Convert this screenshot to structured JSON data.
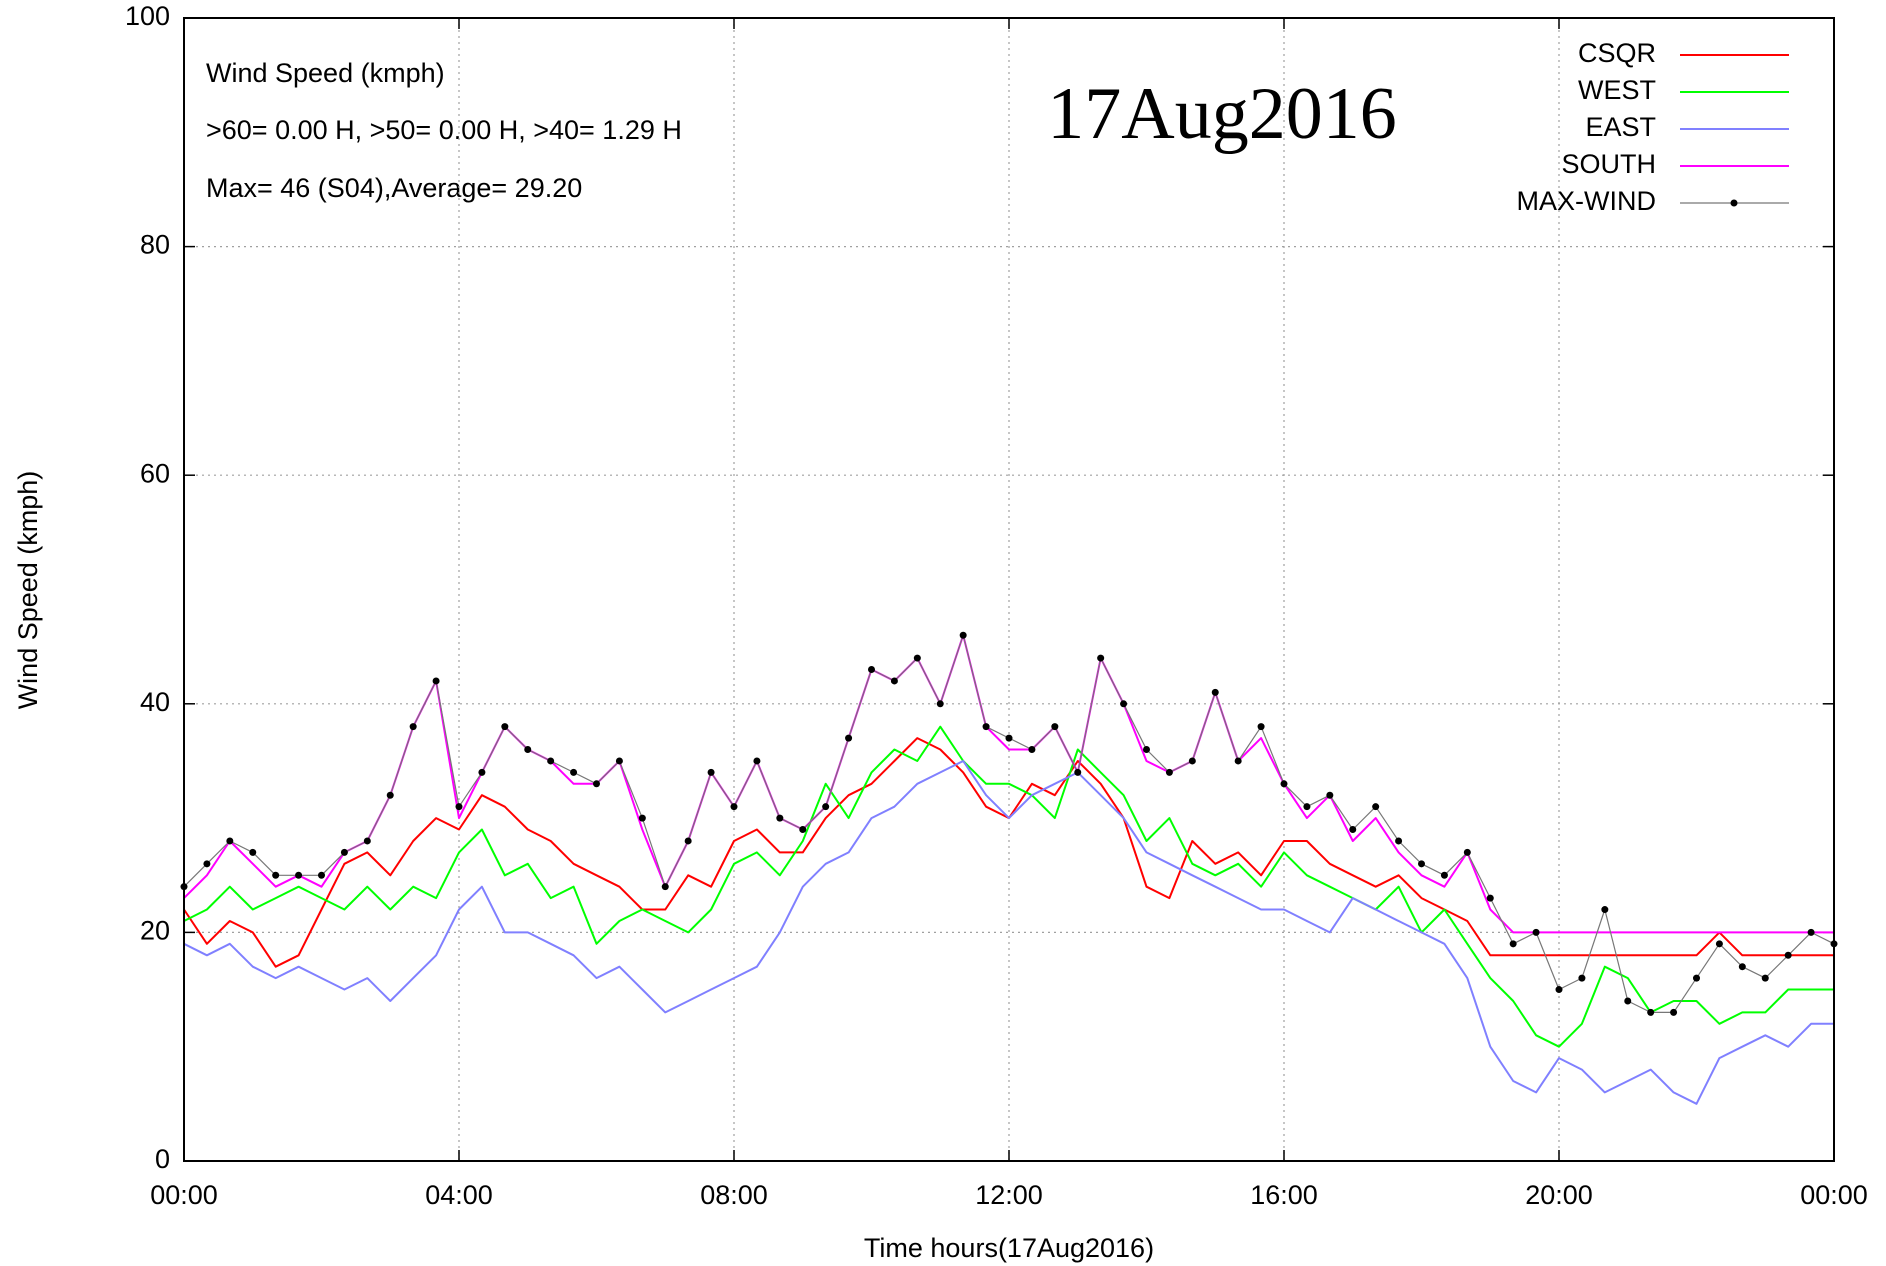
{
  "chart_data": {
    "type": "line",
    "xlabel": "Time hours(17Aug2016)",
    "ylabel": "Wind Speed (kmph)",
    "annotations": [
      "Wind Speed (kmph)",
      ">60=  0.00 H, >50=  0.00 H, >40=  1.29 H",
      "Max= 46 (S04),Average= 29.20"
    ],
    "date_label": "17Aug2016",
    "xlim": [
      0,
      1440
    ],
    "xticks": [
      {
        "value": 0,
        "label": "00:00"
      },
      {
        "value": 240,
        "label": "04:00"
      },
      {
        "value": 480,
        "label": "08:00"
      },
      {
        "value": 720,
        "label": "12:00"
      },
      {
        "value": 960,
        "label": "16:00"
      },
      {
        "value": 1200,
        "label": "20:00"
      },
      {
        "value": 1440,
        "label": "00:00"
      }
    ],
    "ylim": [
      0,
      100
    ],
    "yticks": [
      0,
      20,
      40,
      60,
      80,
      100
    ],
    "grid": true,
    "legend": "top right",
    "x": [
      0,
      20,
      40,
      60,
      80,
      100,
      120,
      140,
      160,
      180,
      200,
      220,
      240,
      260,
      280,
      300,
      320,
      340,
      360,
      380,
      400,
      420,
      440,
      460,
      480,
      500,
      520,
      540,
      560,
      580,
      600,
      620,
      640,
      660,
      680,
      700,
      720,
      740,
      760,
      780,
      800,
      820,
      840,
      860,
      880,
      900,
      920,
      940,
      960,
      980,
      1000,
      1020,
      1040,
      1060,
      1080,
      1100,
      1120,
      1140,
      1160,
      1180,
      1200,
      1220,
      1240,
      1260,
      1280,
      1300,
      1320,
      1340,
      1360,
      1380,
      1400,
      1420,
      1440
    ],
    "series": [
      {
        "name": "CSQR",
        "color": "#ff0000",
        "values": [
          22,
          19,
          21,
          20,
          17,
          18,
          22,
          26,
          27,
          25,
          28,
          30,
          29,
          32,
          31,
          29,
          28,
          26,
          25,
          24,
          22,
          22,
          25,
          24,
          28,
          29,
          27,
          27,
          30,
          32,
          33,
          35,
          37,
          36,
          34,
          31,
          30,
          33,
          32,
          35,
          33,
          30,
          24,
          23,
          28,
          26,
          27,
          25,
          28,
          28,
          26,
          25,
          24,
          25,
          23,
          22,
          21,
          18,
          18,
          18,
          18,
          18,
          18,
          18,
          18,
          18,
          18,
          20,
          18,
          18,
          18,
          18,
          18
        ]
      },
      {
        "name": "WEST",
        "color": "#00ff00",
        "values": [
          21,
          22,
          24,
          22,
          23,
          24,
          23,
          22,
          24,
          22,
          24,
          23,
          27,
          29,
          25,
          26,
          23,
          24,
          19,
          21,
          22,
          21,
          20,
          22,
          26,
          27,
          25,
          28,
          33,
          30,
          34,
          36,
          35,
          38,
          35,
          33,
          33,
          32,
          30,
          36,
          34,
          32,
          28,
          30,
          26,
          25,
          26,
          24,
          27,
          25,
          24,
          23,
          22,
          24,
          20,
          22,
          19,
          16,
          14,
          11,
          10,
          12,
          17,
          16,
          13,
          14,
          14,
          12,
          13,
          13,
          15,
          15,
          15
        ]
      },
      {
        "name": "EAST",
        "color": "#8080ff",
        "values": [
          19,
          18,
          19,
          17,
          16,
          17,
          16,
          15,
          16,
          14,
          16,
          18,
          22,
          24,
          20,
          20,
          19,
          18,
          16,
          17,
          15,
          13,
          14,
          15,
          16,
          17,
          20,
          24,
          26,
          27,
          30,
          31,
          33,
          34,
          35,
          32,
          30,
          32,
          33,
          34,
          32,
          30,
          27,
          26,
          25,
          24,
          23,
          22,
          22,
          21,
          20,
          23,
          22,
          21,
          20,
          19,
          16,
          10,
          7,
          6,
          9,
          8,
          6,
          7,
          8,
          6,
          5,
          9,
          10,
          11,
          10,
          12,
          12
        ]
      },
      {
        "name": "SOUTH",
        "color": "#ff00ff",
        "values": [
          23,
          25,
          28,
          26,
          24,
          25,
          24,
          27,
          28,
          32,
          38,
          42,
          30,
          34,
          38,
          36,
          35,
          33,
          33,
          35,
          29,
          24,
          28,
          34,
          31,
          35,
          30,
          29,
          31,
          37,
          43,
          42,
          44,
          40,
          46,
          38,
          36,
          36,
          38,
          34,
          44,
          40,
          35,
          34,
          35,
          41,
          35,
          37,
          33,
          30,
          32,
          28,
          30,
          27,
          25,
          24,
          27,
          22,
          20,
          20,
          20,
          20,
          20,
          20,
          20,
          20,
          20,
          20,
          20,
          20,
          20,
          20,
          20
        ]
      },
      {
        "name": "MAX-WIND",
        "color": "#000000",
        "values": [
          24,
          26,
          28,
          27,
          25,
          25,
          25,
          27,
          28,
          32,
          38,
          42,
          31,
          34,
          38,
          36,
          35,
          34,
          33,
          35,
          30,
          24,
          28,
          34,
          31,
          35,
          30,
          29,
          31,
          37,
          43,
          42,
          44,
          40,
          46,
          38,
          37,
          36,
          38,
          34,
          44,
          40,
          36,
          34,
          35,
          41,
          35,
          38,
          33,
          31,
          32,
          29,
          31,
          28,
          26,
          25,
          27,
          23,
          19,
          20,
          15,
          16,
          22,
          14,
          13,
          13,
          16,
          19,
          17,
          16,
          18,
          20,
          19
        ]
      }
    ]
  }
}
